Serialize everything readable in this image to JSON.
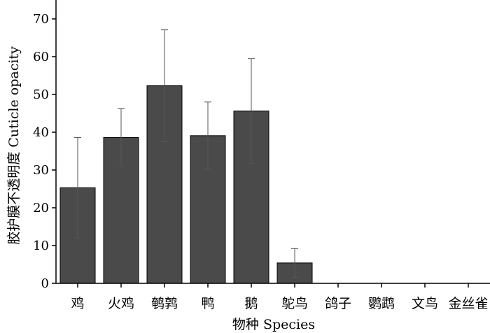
{
  "chart_data": {
    "type": "bar",
    "categories": [
      "鸡",
      "火鸡",
      "鹌鹑",
      "鸭",
      "鹅",
      "鸵鸟",
      "鸽子",
      "鹦鹉",
      "文鸟",
      "金丝雀"
    ],
    "values": [
      25.3,
      38.6,
      52.3,
      39.1,
      45.6,
      5.4,
      0,
      0,
      0,
      0
    ],
    "errors": [
      13.3,
      7.6,
      14.8,
      8.9,
      13.9,
      3.8,
      0,
      0,
      0,
      0
    ],
    "title": "",
    "xlabel": "物种 Species",
    "ylabel": "胶护膜不透明度 Cuticle opacity",
    "ylim": [
      0,
      75
    ],
    "yticks": [
      0,
      10,
      20,
      30,
      40,
      50,
      60,
      70
    ],
    "grid": false,
    "colors": {
      "bar": "#4a4a4a",
      "bar_edge": "#000000",
      "error_bar": "#555555",
      "axis": "#000000"
    }
  }
}
